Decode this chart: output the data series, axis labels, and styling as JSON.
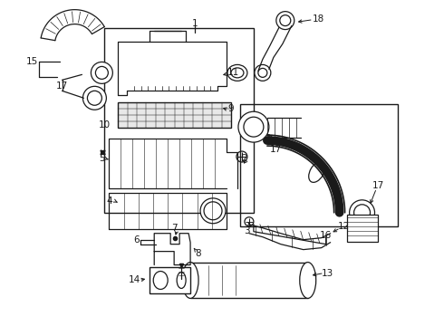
{
  "bg_color": "#ffffff",
  "lc": "#1a1a1a",
  "fig_w": 4.9,
  "fig_h": 3.6,
  "dpi": 100,
  "fs": 7.5,
  "lw": 0.9
}
